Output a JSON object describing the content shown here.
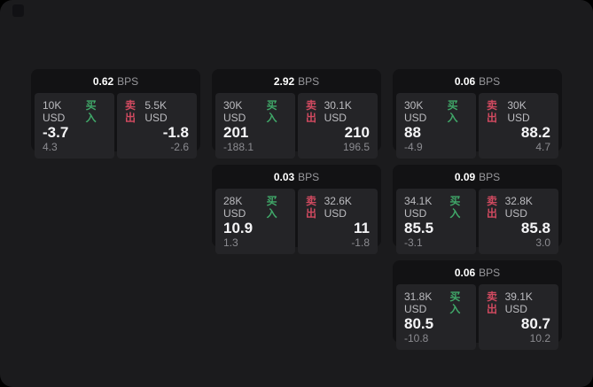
{
  "labels": {
    "bps": "BPS",
    "buy": "买入",
    "sell": "卖出"
  },
  "colors": {
    "panel": "#1b1b1d",
    "card": "#121214",
    "tile": "#242427",
    "buy-green": "#40a869",
    "sell-red": "#d14a60"
  },
  "cards": [
    {
      "bps": "0.62",
      "left": {
        "amount": "10K USD",
        "value": "-3.7",
        "delta": "4.3"
      },
      "right": {
        "amount": "5.5K USD",
        "value": "-1.8",
        "delta": "-2.6"
      }
    },
    {
      "bps": "2.92",
      "left": {
        "amount": "30K USD",
        "value": "201",
        "delta": "-188.1"
      },
      "right": {
        "amount": "30.1K USD",
        "value": "210",
        "delta": "196.5"
      }
    },
    {
      "bps": "0.06",
      "left": {
        "amount": "30K USD",
        "value": "88",
        "delta": "-4.9"
      },
      "right": {
        "amount": "30K USD",
        "value": "88.2",
        "delta": "4.7"
      }
    },
    {
      "bps": "0.03",
      "left": {
        "amount": "28K USD",
        "value": "10.9",
        "delta": "1.3"
      },
      "right": {
        "amount": "32.6K USD",
        "value": "11",
        "delta": "-1.8"
      }
    },
    {
      "bps": "0.09",
      "left": {
        "amount": "34.1K USD",
        "value": "85.5",
        "delta": "-3.1"
      },
      "right": {
        "amount": "32.8K USD",
        "value": "85.8",
        "delta": "3.0"
      }
    },
    {
      "bps": "0.06",
      "left": {
        "amount": "31.8K USD",
        "value": "80.5",
        "delta": "-10.8"
      },
      "right": {
        "amount": "39.1K USD",
        "value": "80.7",
        "delta": "10.2"
      }
    }
  ]
}
